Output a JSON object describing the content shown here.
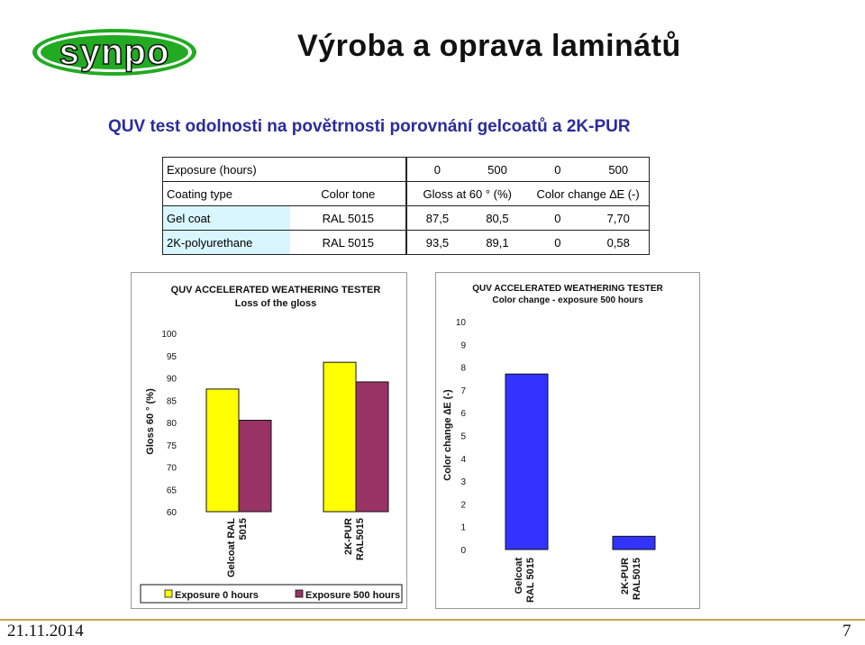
{
  "header": {
    "title": "Výroba a oprava laminátů",
    "logo_text": "synpo"
  },
  "subtitle": "QUV test odolnosti na povětrnosti porovnání  gelcoatů a 2K-PUR",
  "table": {
    "rows": [
      [
        "Exposure (hours)",
        "",
        "0",
        "500",
        "0",
        "500"
      ],
      [
        "Coating type",
        "Color tone",
        "Gloss at 60 ° (%)",
        "Color change ∆E (-)"
      ],
      [
        "Gel coat",
        "RAL 5015",
        "87,5",
        "80,5",
        "0",
        "7,70"
      ],
      [
        "2K-polyurethane",
        "RAL 5015",
        "93,5",
        "89,1",
        "0",
        "0,58"
      ]
    ]
  },
  "colors": {
    "series_0h": "#ffff00",
    "series_500h": "#993366",
    "blue_bar": "#3333ff",
    "highlight": "#d9f6ff",
    "subtitle": "#2b2b9c",
    "logo_green": "#22aa22"
  },
  "chart_data": [
    {
      "type": "bar",
      "title": "QUV ACCELERATED WEATHERING TESTER",
      "subtitle": "Loss of the gloss",
      "ylabel": "Gloss 60 ° (%)",
      "xlabel": "",
      "ylim": [
        60,
        100
      ],
      "yticks": [
        "60",
        "65",
        "70",
        "75",
        "80",
        "85",
        "90",
        "95",
        "100"
      ],
      "categories": [
        "Gelcoat    RAL 5015",
        "2K-PUR RAL5015"
      ],
      "series": [
        {
          "name": "Exposure 0 hours",
          "values": [
            87.5,
            93.5
          ]
        },
        {
          "name": "Exposure 500 hours",
          "values": [
            80.5,
            89.1
          ]
        }
      ],
      "legend": "bottom",
      "grid": false
    },
    {
      "type": "bar",
      "title": "QUV ACCELERATED WEATHERING TESTER",
      "subtitle": "Color change - exposure 500 hours",
      "ylabel": "Color change ∆E (-)",
      "xlabel": "",
      "ylim": [
        0,
        10
      ],
      "yticks": [
        "0",
        "1",
        "2",
        "3",
        "4",
        "5",
        "6",
        "7",
        "8",
        "9",
        "10"
      ],
      "categories": [
        "Gelcoat RAL 5015",
        "2K-PUR RAL5015"
      ],
      "values": [
        7.7,
        0.58
      ],
      "grid": false
    }
  ],
  "footer": {
    "date": "21.11.2014",
    "page": "7"
  }
}
